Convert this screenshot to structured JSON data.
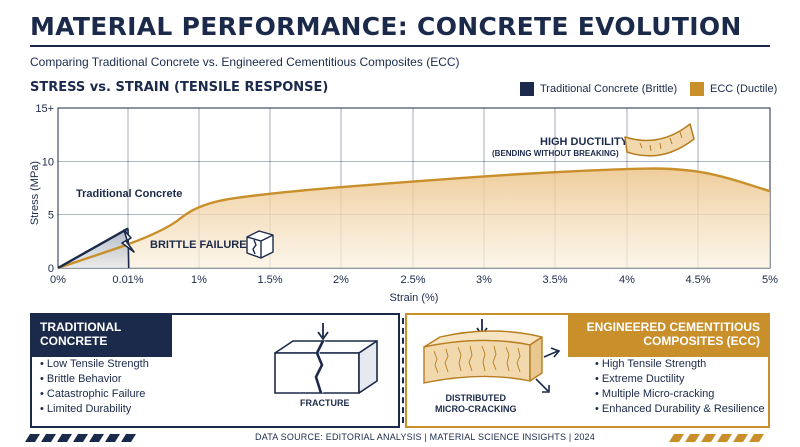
{
  "title": "MATERIAL PERFORMANCE: CONCRETE EVOLUTION",
  "subtitle": "Comparing Traditional Concrete vs. Engineered Cementitious Composites (ECC)",
  "chart_heading": "STRESS vs. STRAIN (TENSILE RESPONSE)",
  "legend": {
    "traditional": "Traditional Concrete (Brittle)",
    "ecc": "ECC (Ductile)"
  },
  "colors": {
    "navy": "#1b2a4a",
    "gold": "#c98f2a",
    "gold_fill": "#f3dfb8"
  },
  "chart_data": {
    "type": "line",
    "xlabel": "Strain (%)",
    "ylabel": "Stress (MPa)",
    "x_ticks": [
      "0%",
      "0.01%",
      "1%",
      "1.5%",
      "2%",
      "2.5%",
      "3%",
      "3.5%",
      "4%",
      "4.5%",
      "5%"
    ],
    "y_ticks": [
      "0",
      "5",
      "10",
      "15+"
    ],
    "ylim": [
      0,
      15
    ],
    "grid": true,
    "series": [
      {
        "name": "Traditional Concrete",
        "points": [
          [
            0,
            0
          ],
          [
            0.01,
            3.7
          ],
          [
            0.02,
            0
          ]
        ]
      },
      {
        "name": "ECC",
        "points": [
          [
            0,
            0
          ],
          [
            0.5,
            3.3
          ],
          [
            1,
            6.1
          ],
          [
            1.5,
            7.0
          ],
          [
            2,
            7.6
          ],
          [
            2.5,
            8.1
          ],
          [
            3,
            8.6
          ],
          [
            3.5,
            9.0
          ],
          [
            4,
            9.3
          ],
          [
            4.3,
            9.35
          ],
          [
            4.6,
            8.9
          ],
          [
            5,
            7.2
          ]
        ]
      }
    ],
    "annotations": {
      "traditional_label": "Traditional Concrete",
      "brittle_failure": "BRITTLE FAILURE",
      "high_ductility": "HIGH DUCTILITY",
      "high_ductility_sub": "(BENDING WITHOUT BREAKING)"
    }
  },
  "panels": {
    "traditional": {
      "heading_line1": "TRADITIONAL",
      "heading_line2": "CONCRETE",
      "bullets": [
        "Low Tensile Strength",
        "Brittle Behavior",
        "Catastrophic Failure",
        "Limited Durability"
      ],
      "figure_label": "FRACTURE"
    },
    "ecc": {
      "heading_line1": "ENGINEERED CEMENTITIOUS",
      "heading_line2": "COMPOSITES (ECC)",
      "bullets": [
        "High Tensile Strength",
        "Extreme Ductility",
        "Multiple Micro-cracking",
        "Enhanced Durability & Resilience"
      ],
      "figure_label_line1": "DISTRIBUTED",
      "figure_label_line2": "MICRO-CRACKING"
    }
  },
  "footer": "DATA SOURCE: EDITORIAL ANALYSIS  |  MATERIAL SCIENCE INSIGHTS  |  2024"
}
